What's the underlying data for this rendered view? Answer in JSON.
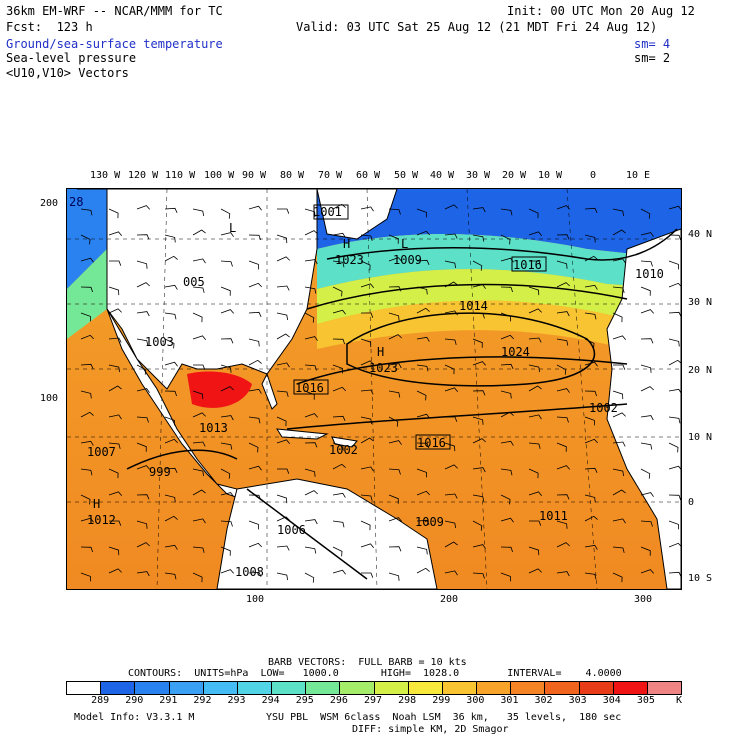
{
  "header": {
    "model_line": "36km EM-WRF -- NCAR/MMM for TC",
    "init_line": "Init: 00 UTC Mon 20 Aug 12",
    "fcst_line": "Fcst:  123 h",
    "valid_line": "Valid: 03 UTC Sat 25 Aug 12 (21 MDT Fri 24 Aug 12)",
    "field1": "Ground/sea-surface temperature",
    "field1_sm": "sm= 4",
    "field2": "Sea-level pressure",
    "field2_sm": "sm= 2",
    "field3": "<U10,V10> Vectors"
  },
  "axes": {
    "top_labels": [
      "130 W",
      "120 W",
      "110 W",
      "100 W",
      "90 W",
      "80 W",
      "70 W",
      "60 W",
      "50 W",
      "40 W",
      "30 W",
      "20 W",
      "10 W",
      "0",
      "10 E"
    ],
    "right_labels": [
      "40 N",
      "30 N",
      "20 N",
      "10 N",
      "0",
      "10 S"
    ],
    "left_labels": [
      "200",
      "100"
    ],
    "bottom_labels": [
      "100",
      "200",
      "300"
    ]
  },
  "pressure_labels": [
    {
      "id": "h-1023-ne",
      "text": "H"
    },
    {
      "id": "v-1023-ne",
      "text": "1023"
    },
    {
      "id": "l-1009",
      "text": "L"
    },
    {
      "id": "v-1009",
      "text": "1009"
    },
    {
      "id": "v-1016-a",
      "text": "1016"
    },
    {
      "id": "v-1016-b",
      "text": "1016"
    },
    {
      "id": "v-1001",
      "text": "1001"
    },
    {
      "id": "v-1014",
      "text": "1014"
    },
    {
      "id": "v-1024",
      "text": "1024"
    },
    {
      "id": "v-1003",
      "text": "1003"
    },
    {
      "id": "l-005",
      "text": "L"
    },
    {
      "id": "v-005",
      "text": "005"
    },
    {
      "id": "h-1023",
      "text": "H"
    },
    {
      "id": "v-1023",
      "text": "1023"
    },
    {
      "id": "v-1016-c",
      "text": "1016"
    },
    {
      "id": "v-1016-d",
      "text": "1016"
    },
    {
      "id": "v-1013",
      "text": "1013"
    },
    {
      "id": "v-1007",
      "text": "1007"
    },
    {
      "id": "v-999",
      "text": "999"
    },
    {
      "id": "v-1002",
      "text": "1002"
    },
    {
      "id": "h-1012",
      "text": "H"
    },
    {
      "id": "v-1012",
      "text": "1012"
    },
    {
      "id": "v-1006",
      "text": "1006"
    },
    {
      "id": "v-1009-b",
      "text": "1009"
    },
    {
      "id": "v-1011",
      "text": "1011"
    },
    {
      "id": "v-1002-b",
      "text": "1002"
    },
    {
      "id": "v-1008",
      "text": "1008"
    },
    {
      "id": "v-1010",
      "text": "1010"
    },
    {
      "id": "v-28",
      "text": "28"
    }
  ],
  "footer": {
    "barb_line": "BARB VECTORS:  FULL BARB = 10 kts",
    "contours_line": "CONTOURS:  UNITS=hPa  LOW=   1000.0       HIGH=  1028.0        INTERVAL=    4.0000",
    "colorbar_values": [
      "289",
      "290",
      "291",
      "292",
      "293",
      "294",
      "295",
      "296",
      "297",
      "298",
      "299",
      "300",
      "301",
      "302",
      "303",
      "304",
      "305"
    ],
    "colorbar_unit": "K",
    "model_info": "Model Info: V3.3.1 M",
    "physics_line": "YSU PBL  WSM 6class  Noah LSM  36 km,   35 levels,  180 sec",
    "diff_line": "DIFF: simple KM, 2D Smagor"
  },
  "colors": {
    "colorbar": [
      "#ffffff",
      "#1e64e6",
      "#2a82f0",
      "#3aa0f4",
      "#46bcf4",
      "#50d4e6",
      "#5ce0c8",
      "#74e896",
      "#a4ec6a",
      "#d4f048",
      "#f8e83c",
      "#f8c432",
      "#f8a42a",
      "#f48424",
      "#f0641e",
      "#e83c18",
      "#f01414",
      "#f08484"
    ]
  }
}
